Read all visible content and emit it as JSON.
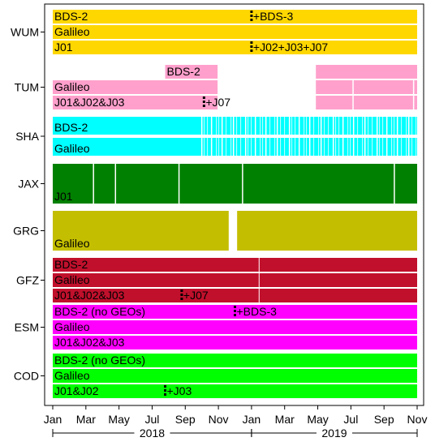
{
  "chart_data": {
    "type": "timeline",
    "x_range": [
      "2018-01",
      "2019-11"
    ],
    "x_tick_labels": [
      "Jan",
      "Mar",
      "May",
      "Jul",
      "Sep",
      "Nov",
      "Jan",
      "Mar",
      "May",
      "Jul",
      "Sep",
      "Nov"
    ],
    "year_labels": [
      "2018",
      "2019"
    ],
    "grid": false,
    "legend": "none",
    "analysis_centers": [
      {
        "name": "WUM",
        "color": "#FFD700",
        "rows": [
          {
            "label": "BDS-2",
            "start": "2018-01",
            "end": "2019-11",
            "gaps": [],
            "marker": {
              "date": "2019-01",
              "label": "+BDS-3"
            }
          },
          {
            "label": "Galileo",
            "start": "2018-01",
            "end": "2019-11",
            "gaps": [],
            "marker": null
          },
          {
            "label": "J01",
            "start": "2018-01",
            "end": "2019-11",
            "gaps": [],
            "marker": {
              "date": "2019-01",
              "label": "+J02+J03+J07"
            }
          }
        ]
      },
      {
        "name": "TUM",
        "color": "#FFA0CC",
        "rows": [
          {
            "label": "BDS-2",
            "start": "2017-12",
            "end": "2018-01",
            "offset_label": true,
            "segments": [
              [
                "2018-07-25",
                "2018-10-30"
              ],
              [
                "2019-04-28",
                "2019-11"
              ]
            ],
            "marker": null
          },
          {
            "label": "Galileo",
            "segments": [
              [
                "2018-01",
                "2018-10-30"
              ],
              [
                "2019-04-28",
                "2019-11"
              ]
            ],
            "marker": null
          },
          {
            "label": "J01&J02&J03",
            "segments": [
              [
                "2018-01",
                "2018-10-30"
              ],
              [
                "2019-04-28",
                "2019-11"
              ]
            ],
            "marker": {
              "date": "2018-10-05",
              "label": "+J07"
            }
          }
        ]
      },
      {
        "name": "SHA",
        "color": "#00FFFF",
        "rows": [
          {
            "label": "BDS-2",
            "start": "2018-01",
            "end": "2019-11",
            "striped_from": "2018-10-01",
            "marker": null
          },
          {
            "label": "Galileo",
            "start": "2018-01",
            "end": "2019-11",
            "striped_from": "2018-10-01",
            "marker": null
          }
        ]
      },
      {
        "name": "JAX",
        "color": "#008000",
        "rows": [
          {
            "label": "J01",
            "start": "2018-01",
            "end": "2019-11",
            "marker": null
          }
        ]
      },
      {
        "name": "GRG",
        "color": "#C4BE00",
        "rows": [
          {
            "label": "Galileo",
            "segments": [
              [
                "2018-01",
                "2018-11-20"
              ],
              [
                "2018-12-05",
                "2019-11"
              ]
            ],
            "marker": null
          }
        ]
      },
      {
        "name": "GFZ",
        "color": "#C0102C",
        "rows": [
          {
            "label": "BDS-2",
            "start": "2018-01",
            "end": "2019-11",
            "marker": null
          },
          {
            "label": "Galileo",
            "start": "2018-01",
            "end": "2019-11",
            "marker": null
          },
          {
            "label": "J01&J02&J03",
            "start": "2018-01",
            "end": "2019-11",
            "marker": {
              "date": "2018-08-25",
              "label": "+J07"
            }
          }
        ]
      },
      {
        "name": "ESM",
        "color": "#FF00FF",
        "rows": [
          {
            "label": "BDS-2 (no GEOs)",
            "start": "2018-01",
            "end": "2019-11",
            "marker": {
              "date": "2018-12-01",
              "label": "+BDS-3"
            }
          },
          {
            "label": "Galileo",
            "start": "2018-01",
            "end": "2019-11",
            "marker": null
          },
          {
            "label": "J01&J02&J03",
            "start": "2018-01",
            "end": "2019-11",
            "marker": null
          }
        ]
      },
      {
        "name": "COD",
        "color": "#00FF00",
        "rows": [
          {
            "label": "BDS-2 (no GEOs)",
            "start": "2018-01",
            "end": "2019-11",
            "marker": null
          },
          {
            "label": "Galileo",
            "start": "2018-01",
            "end": "2019-11",
            "marker": null
          },
          {
            "label": "J01&J02",
            "start": "2018-01",
            "end": "2019-11",
            "marker": {
              "date": "2018-07-25",
              "label": "+J03"
            }
          }
        ]
      }
    ]
  }
}
